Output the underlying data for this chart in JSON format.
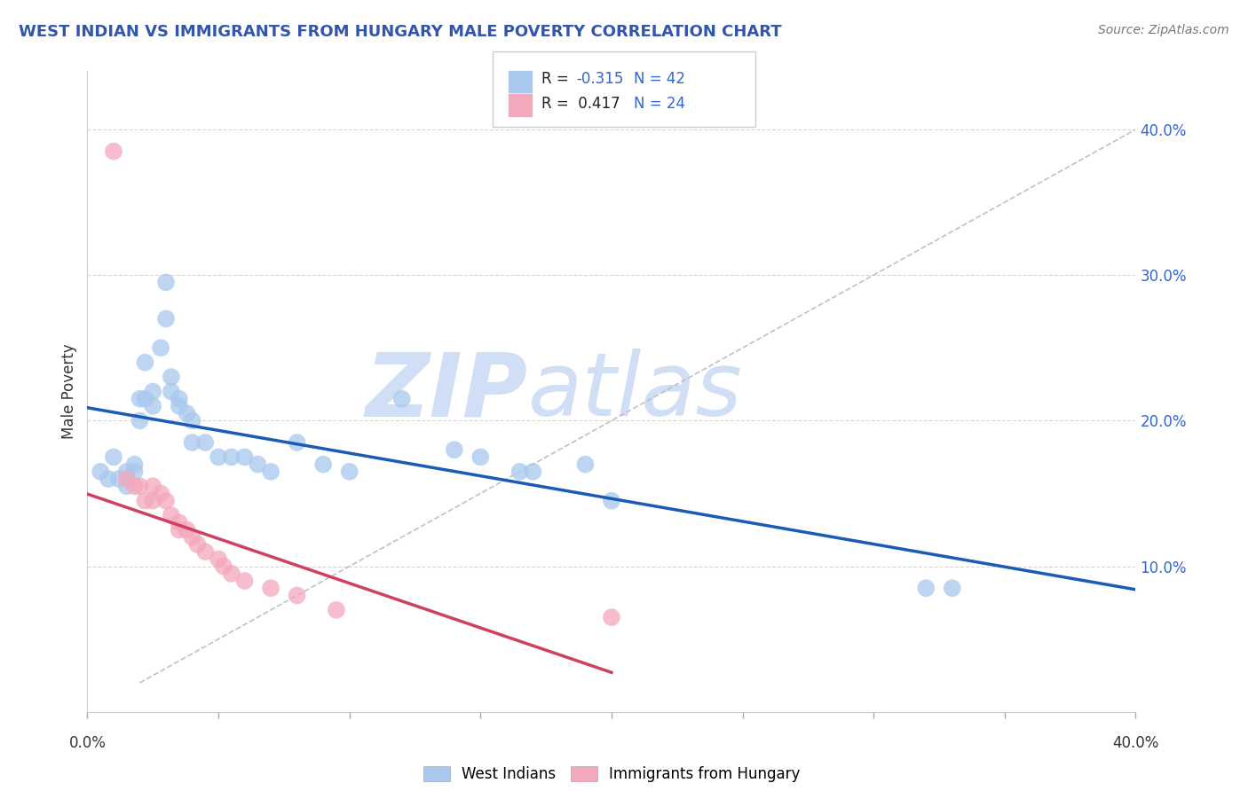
{
  "title": "WEST INDIAN VS IMMIGRANTS FROM HUNGARY MALE POVERTY CORRELATION CHART",
  "source": "Source: ZipAtlas.com",
  "ylabel": "Male Poverty",
  "xlim": [
    0,
    0.4
  ],
  "ylim": [
    0,
    0.44
  ],
  "yticks": [
    0.1,
    0.2,
    0.3,
    0.4
  ],
  "ytick_labels": [
    "10.0%",
    "20.0%",
    "30.0%",
    "40.0%"
  ],
  "blue_color": "#A8C8EE",
  "pink_color": "#F4A8BB",
  "blue_line_color": "#1A5BB5",
  "pink_line_color": "#D04060",
  "blue_scatter": [
    [
      0.005,
      0.165
    ],
    [
      0.008,
      0.16
    ],
    [
      0.01,
      0.175
    ],
    [
      0.012,
      0.16
    ],
    [
      0.015,
      0.165
    ],
    [
      0.015,
      0.155
    ],
    [
      0.018,
      0.17
    ],
    [
      0.018,
      0.165
    ],
    [
      0.02,
      0.215
    ],
    [
      0.02,
      0.2
    ],
    [
      0.022,
      0.24
    ],
    [
      0.022,
      0.215
    ],
    [
      0.025,
      0.22
    ],
    [
      0.025,
      0.21
    ],
    [
      0.028,
      0.25
    ],
    [
      0.03,
      0.295
    ],
    [
      0.03,
      0.27
    ],
    [
      0.032,
      0.23
    ],
    [
      0.032,
      0.22
    ],
    [
      0.035,
      0.215
    ],
    [
      0.035,
      0.21
    ],
    [
      0.038,
      0.205
    ],
    [
      0.04,
      0.2
    ],
    [
      0.04,
      0.185
    ],
    [
      0.045,
      0.185
    ],
    [
      0.05,
      0.175
    ],
    [
      0.055,
      0.175
    ],
    [
      0.06,
      0.175
    ],
    [
      0.065,
      0.17
    ],
    [
      0.07,
      0.165
    ],
    [
      0.08,
      0.185
    ],
    [
      0.09,
      0.17
    ],
    [
      0.1,
      0.165
    ],
    [
      0.12,
      0.215
    ],
    [
      0.14,
      0.18
    ],
    [
      0.15,
      0.175
    ],
    [
      0.165,
      0.165
    ],
    [
      0.17,
      0.165
    ],
    [
      0.19,
      0.17
    ],
    [
      0.2,
      0.145
    ],
    [
      0.32,
      0.085
    ],
    [
      0.33,
      0.085
    ]
  ],
  "pink_scatter": [
    [
      0.01,
      0.385
    ],
    [
      0.015,
      0.16
    ],
    [
      0.018,
      0.155
    ],
    [
      0.02,
      0.155
    ],
    [
      0.022,
      0.145
    ],
    [
      0.025,
      0.155
    ],
    [
      0.025,
      0.145
    ],
    [
      0.028,
      0.15
    ],
    [
      0.03,
      0.145
    ],
    [
      0.032,
      0.135
    ],
    [
      0.035,
      0.13
    ],
    [
      0.035,
      0.125
    ],
    [
      0.038,
      0.125
    ],
    [
      0.04,
      0.12
    ],
    [
      0.042,
      0.115
    ],
    [
      0.045,
      0.11
    ],
    [
      0.05,
      0.105
    ],
    [
      0.052,
      0.1
    ],
    [
      0.055,
      0.095
    ],
    [
      0.06,
      0.09
    ],
    [
      0.07,
      0.085
    ],
    [
      0.08,
      0.08
    ],
    [
      0.095,
      0.07
    ],
    [
      0.2,
      0.065
    ]
  ],
  "watermark_zip": "ZIP",
  "watermark_atlas": "atlas",
  "watermark_color": "#D0DFF5",
  "background_color": "#FFFFFF",
  "grid_color": "#CCCCCC",
  "title_color": "#3355AA",
  "source_color": "#777777",
  "yticklabel_color": "#3366CC",
  "axis_label_color": "#333333"
}
